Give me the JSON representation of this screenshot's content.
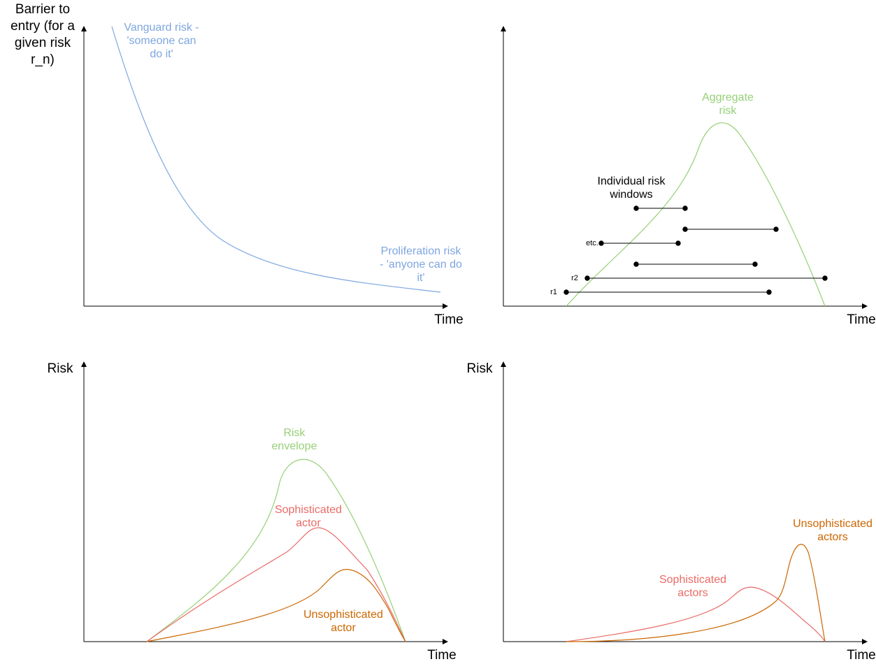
{
  "colors": {
    "axis": "#000000",
    "vanguard": "#7ea6e0",
    "aggregate": "#97d077",
    "sophisticated": "#ea6b66",
    "unsophisticated": "#cc6600",
    "window": "#000000"
  },
  "panel1": {
    "ylabel": "Barrier to entry (for a given risk r_n)",
    "xlabel": "Time",
    "vanguard_label": "Vanguard risk - 'someone can do it'",
    "proliferation_label": "Proliferation risk - 'anyone can do it'"
  },
  "panel2": {
    "xlabel": "Time",
    "aggregate_label": "Aggregate risk",
    "windows_label": "Individual risk windows",
    "etc_label": "etc.",
    "r2_label": "r2",
    "r1_label": "r1"
  },
  "panel3": {
    "ylabel": "Risk",
    "xlabel": "Time",
    "envelope_label": "Risk envelope",
    "sophisticated_label": "Sophisticated actor",
    "unsophisticated_label": "Unsophisticated actor"
  },
  "panel4": {
    "ylabel": "Risk",
    "xlabel": "Time",
    "sophisticated_label": "Sophisticated actors",
    "unsophisticated_label": "Unsophisticated actors"
  }
}
